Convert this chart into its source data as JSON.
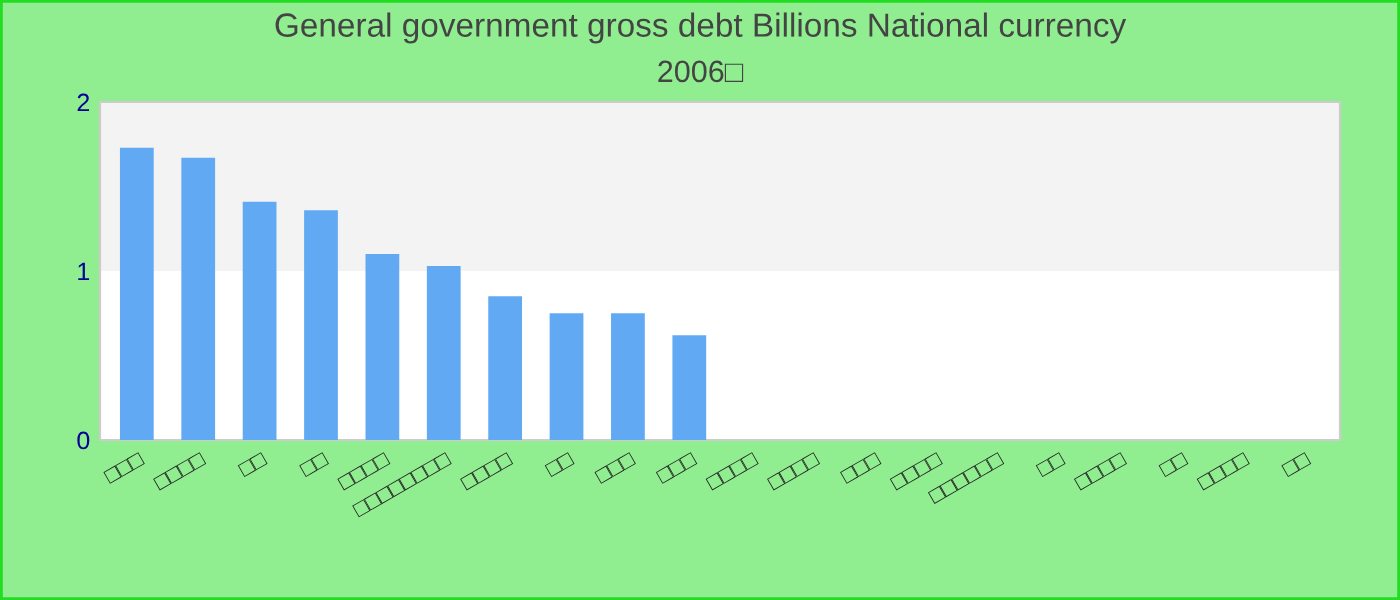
{
  "chart_data": {
    "type": "bar",
    "title": "General government gross debt Billions National currency",
    "subtitle": "2006□",
    "categories": [
      "□□□",
      "□□□□",
      "□□",
      "□□",
      "□□□□",
      "□□□□□□□□",
      "□□□□",
      "□□",
      "□□□",
      "□□□",
      "□□□□",
      "□□□□",
      "□□□",
      "□□□□",
      "□□□□□□",
      "□□",
      "□□□□",
      "□□",
      "□□□□",
      "□□"
    ],
    "values": [
      1.73,
      1.67,
      1.41,
      1.36,
      1.1,
      1.03,
      0.85,
      0.75,
      0.75,
      0.62,
      null,
      null,
      null,
      null,
      null,
      null,
      null,
      null,
      null,
      null
    ],
    "color": "#62a9f4",
    "ylim": [
      0,
      2
    ],
    "yticks": [
      0,
      1,
      2
    ],
    "bands": [
      {
        "axis": "y",
        "from": 1,
        "to": 2,
        "color": "#f3f3f3"
      }
    ]
  }
}
